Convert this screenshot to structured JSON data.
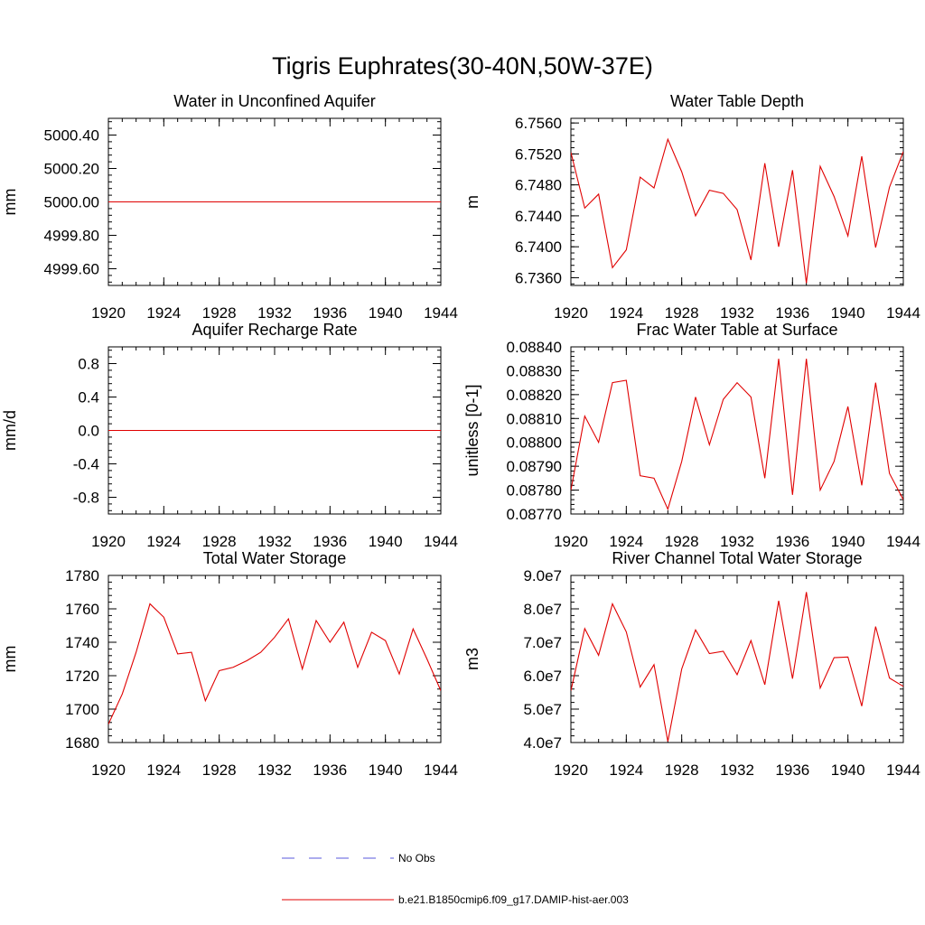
{
  "figure_title": "Tigris Euphrates(30-40N,50W-37E)",
  "legend": {
    "items": [
      {
        "label": "No Obs",
        "color": "#5a5adc",
        "dashed": true
      },
      {
        "label": "b.e21.B1850cmip6.f09_g17.DAMIP-hist-aer.003",
        "color": "#e00000",
        "dashed": false
      }
    ]
  },
  "chart_data": [
    {
      "type": "line",
      "title": "Water in Unconfined Aquifer",
      "xlabel": "",
      "ylabel": "mm",
      "xlim": [
        1920,
        1944
      ],
      "ylim": [
        4999.5,
        5000.5
      ],
      "xticks": [
        1920,
        1924,
        1928,
        1932,
        1936,
        1940,
        1944
      ],
      "yticks": [
        4999.6,
        4999.8,
        5000.0,
        5000.2,
        5000.4
      ],
      "ytick_labels": [
        "4999.60",
        "4999.80",
        "5000.00",
        "5000.20",
        "5000.40"
      ],
      "x": [
        1920,
        1921,
        1922,
        1923,
        1924,
        1925,
        1926,
        1927,
        1928,
        1929,
        1930,
        1931,
        1932,
        1933,
        1934,
        1935,
        1936,
        1937,
        1938,
        1939,
        1940,
        1941,
        1942,
        1943,
        1944
      ],
      "series": [
        {
          "color": "#e00000",
          "values": [
            5000,
            5000,
            5000,
            5000,
            5000,
            5000,
            5000,
            5000,
            5000,
            5000,
            5000,
            5000,
            5000,
            5000,
            5000,
            5000,
            5000,
            5000,
            5000,
            5000,
            5000,
            5000,
            5000,
            5000,
            5000
          ]
        }
      ]
    },
    {
      "type": "line",
      "title": "Water Table Depth",
      "xlabel": "",
      "ylabel": "m",
      "xlim": [
        1920,
        1944
      ],
      "ylim": [
        6.735,
        6.7566
      ],
      "xticks": [
        1920,
        1924,
        1928,
        1932,
        1936,
        1940,
        1944
      ],
      "yticks": [
        6.736,
        6.74,
        6.744,
        6.748,
        6.752,
        6.756
      ],
      "ytick_labels": [
        "6.7360",
        "6.7400",
        "6.7440",
        "6.7480",
        "6.7520",
        "6.7560"
      ],
      "x": [
        1920,
        1921,
        1922,
        1923,
        1924,
        1925,
        1926,
        1927,
        1928,
        1929,
        1930,
        1931,
        1932,
        1933,
        1934,
        1935,
        1936,
        1937,
        1938,
        1939,
        1940,
        1941,
        1942,
        1943,
        1944
      ],
      "series": [
        {
          "color": "#e00000",
          "values": [
            6.7522,
            6.745,
            6.7468,
            6.7373,
            6.7396,
            6.749,
            6.7476,
            6.7539,
            6.7497,
            6.744,
            6.7473,
            6.7469,
            6.7448,
            6.7383,
            6.7508,
            6.74,
            6.7499,
            6.7353,
            6.7504,
            6.7465,
            6.7414,
            6.7517,
            6.7399,
            6.7477,
            6.7523
          ]
        }
      ]
    },
    {
      "type": "line",
      "title": "Aquifer Recharge Rate",
      "xlabel": "",
      "ylabel": "mm/d",
      "xlim": [
        1920,
        1944
      ],
      "ylim": [
        -1.0,
        1.0
      ],
      "xticks": [
        1920,
        1924,
        1928,
        1932,
        1936,
        1940,
        1944
      ],
      "yticks": [
        -0.8,
        -0.4,
        0.0,
        0.4,
        0.8
      ],
      "ytick_labels": [
        "-0.8",
        "-0.4",
        "0.0",
        "0.4",
        "0.8"
      ],
      "x": [
        1920,
        1921,
        1922,
        1923,
        1924,
        1925,
        1926,
        1927,
        1928,
        1929,
        1930,
        1931,
        1932,
        1933,
        1934,
        1935,
        1936,
        1937,
        1938,
        1939,
        1940,
        1941,
        1942,
        1943,
        1944
      ],
      "series": [
        {
          "color": "#e00000",
          "values": [
            0,
            0,
            0,
            0,
            0,
            0,
            0,
            0,
            0,
            0,
            0,
            0,
            0,
            0,
            0,
            0,
            0,
            0,
            0,
            0,
            0,
            0,
            0,
            0,
            0
          ]
        }
      ]
    },
    {
      "type": "line",
      "title": "Frac Water Table at Surface",
      "xlabel": "",
      "ylabel": "unitless [0-1]",
      "xlim": [
        1920,
        1944
      ],
      "ylim": [
        0.0877,
        0.0884
      ],
      "xticks": [
        1920,
        1924,
        1928,
        1932,
        1936,
        1940,
        1944
      ],
      "yticks": [
        0.0877,
        0.0878,
        0.0879,
        0.088,
        0.0881,
        0.0882,
        0.0883,
        0.0884
      ],
      "ytick_labels": [
        "0.08770",
        "0.08780",
        "0.08790",
        "0.08800",
        "0.08810",
        "0.08820",
        "0.08830",
        "0.08840"
      ],
      "x": [
        1920,
        1921,
        1922,
        1923,
        1924,
        1925,
        1926,
        1927,
        1928,
        1929,
        1930,
        1931,
        1932,
        1933,
        1934,
        1935,
        1936,
        1937,
        1938,
        1939,
        1940,
        1941,
        1942,
        1943,
        1944
      ],
      "series": [
        {
          "color": "#e00000",
          "values": [
            0.0878,
            0.08811,
            0.088,
            0.08825,
            0.08826,
            0.08786,
            0.08785,
            0.08772,
            0.08792,
            0.08819,
            0.08799,
            0.08818,
            0.08825,
            0.08819,
            0.08785,
            0.08835,
            0.08778,
            0.08835,
            0.0878,
            0.08792,
            0.08815,
            0.08782,
            0.08825,
            0.08787,
            0.08776
          ]
        }
      ]
    },
    {
      "type": "line",
      "title": "Total Water Storage",
      "xlabel": "",
      "ylabel": "mm",
      "xlim": [
        1920,
        1944
      ],
      "ylim": [
        1680,
        1780
      ],
      "xticks": [
        1920,
        1924,
        1928,
        1932,
        1936,
        1940,
        1944
      ],
      "yticks": [
        1680,
        1700,
        1720,
        1740,
        1760,
        1780
      ],
      "ytick_labels": [
        "1680",
        "1700",
        "1720",
        "1740",
        "1760",
        "1780"
      ],
      "x": [
        1920,
        1921,
        1922,
        1923,
        1924,
        1925,
        1926,
        1927,
        1928,
        1929,
        1930,
        1931,
        1932,
        1933,
        1934,
        1935,
        1936,
        1937,
        1938,
        1939,
        1940,
        1941,
        1942,
        1943,
        1944
      ],
      "series": [
        {
          "color": "#e00000",
          "values": [
            1691,
            1709,
            1734,
            1763,
            1755,
            1733,
            1734,
            1705,
            1723,
            1725,
            1729,
            1734,
            1743,
            1754,
            1724,
            1753,
            1740,
            1752,
            1725,
            1746,
            1741,
            1721,
            1748,
            1730,
            1711
          ]
        }
      ]
    },
    {
      "type": "line",
      "title": "River Channel Total Water Storage",
      "xlabel": "",
      "ylabel": "m3",
      "xlim": [
        1920,
        1944
      ],
      "ylim": [
        40000000,
        90000000
      ],
      "xticks": [
        1920,
        1924,
        1928,
        1932,
        1936,
        1940,
        1944
      ],
      "yticks": [
        40000000,
        50000000,
        60000000,
        70000000,
        80000000,
        90000000
      ],
      "ytick_labels": [
        "4.0e7",
        "5.0e7",
        "6.0e7",
        "7.0e7",
        "8.0e7",
        "9.0e7"
      ],
      "x": [
        1920,
        1921,
        1922,
        1923,
        1924,
        1925,
        1926,
        1927,
        1928,
        1929,
        1930,
        1931,
        1932,
        1933,
        1934,
        1935,
        1936,
        1937,
        1938,
        1939,
        1940,
        1941,
        1942,
        1943,
        1944
      ],
      "series": [
        {
          "color": "#e00000",
          "values": [
            55500000,
            74100000,
            66100000,
            81500000,
            73100000,
            56600000,
            63300000,
            40300000,
            62000000,
            73700000,
            66600000,
            67300000,
            60300000,
            70500000,
            57300000,
            82400000,
            59100000,
            85000000,
            56300000,
            65400000,
            65600000,
            50900000,
            74700000,
            59300000,
            56800000
          ]
        }
      ]
    }
  ]
}
